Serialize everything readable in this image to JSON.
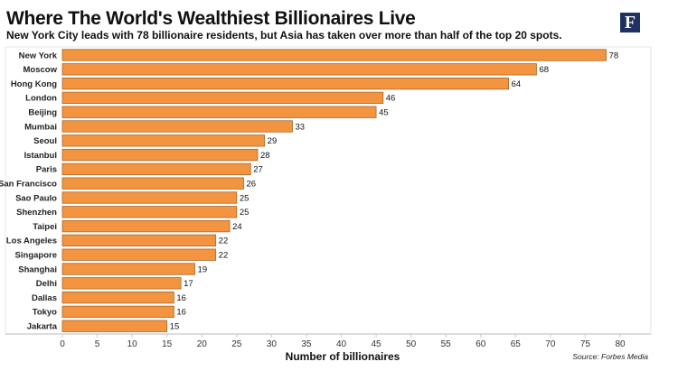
{
  "title": "Where The World's Wealthiest Billionaires Live",
  "subtitle": "New York City leads with 78 billionaire residents, but Asia has taken over more than half of the top 20 spots.",
  "logo_text": "F",
  "source": "Source: Forbes Media",
  "chart_data": {
    "type": "bar",
    "orientation": "horizontal",
    "categories": [
      "New York",
      "Moscow",
      "Hong Kong",
      "London",
      "Beijing",
      "Mumbai",
      "Seoul",
      "Istanbul",
      "Paris",
      "San Francisco",
      "Sao Paulo",
      "Shenzhen",
      "Taipei",
      "Los Angeles",
      "Singapore",
      "Shanghai",
      "Delhi",
      "Dallas",
      "Tokyo",
      "Jakarta"
    ],
    "values": [
      78,
      68,
      64,
      46,
      45,
      33,
      29,
      28,
      27,
      26,
      25,
      25,
      24,
      22,
      22,
      19,
      17,
      16,
      16,
      15
    ],
    "xlabel": "Number of billionaires",
    "xlim": [
      0,
      80
    ],
    "xticks": [
      0,
      5,
      10,
      15,
      20,
      25,
      30,
      35,
      40,
      45,
      50,
      55,
      60,
      65,
      70,
      75,
      80
    ],
    "bar_color": "#f39440",
    "bar_border": "#a8682c",
    "grid": false,
    "legend": "none"
  }
}
